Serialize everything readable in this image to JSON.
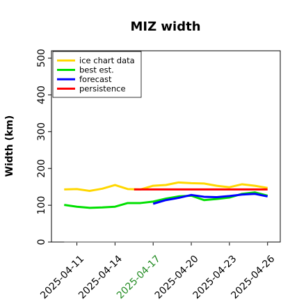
{
  "chart_data": {
    "type": "line",
    "title": "MIZ width",
    "ylabel": "Width (km)",
    "xlabel": "",
    "ylim": [
      0,
      520
    ],
    "yticks": [
      0,
      100,
      200,
      300,
      400,
      500
    ],
    "xlim": [
      "2025-04-09",
      "2025-04-27"
    ],
    "xticks": [
      {
        "label": "2025-04-11",
        "date": "2025-04-11",
        "color": "#000000"
      },
      {
        "label": "2025-04-14",
        "date": "2025-04-14",
        "color": "#000000"
      },
      {
        "label": "2025-04-17",
        "date": "2025-04-17",
        "color": "#228b22"
      },
      {
        "label": "2025-04-20",
        "date": "2025-04-20",
        "color": "#000000"
      },
      {
        "label": "2025-04-23",
        "date": "2025-04-23",
        "color": "#000000"
      },
      {
        "label": "2025-04-26",
        "date": "2025-04-26",
        "color": "#000000"
      }
    ],
    "legend_position": "top-left",
    "grid": false,
    "series": [
      {
        "name": "ice chart data",
        "color": "#ffd700",
        "x": [
          "2025-04-10",
          "2025-04-11",
          "2025-04-12",
          "2025-04-13",
          "2025-04-14",
          "2025-04-15",
          "2025-04-16",
          "2025-04-17",
          "2025-04-18",
          "2025-04-19",
          "2025-04-20",
          "2025-04-21",
          "2025-04-22",
          "2025-04-23",
          "2025-04-24",
          "2025-04-25",
          "2025-04-26"
        ],
        "y": [
          143,
          144,
          139,
          145,
          155,
          144,
          143,
          153,
          155,
          162,
          160,
          159,
          153,
          149,
          157,
          153,
          147
        ]
      },
      {
        "name": "best est.",
        "color": "#00e000",
        "x": [
          "2025-04-10",
          "2025-04-11",
          "2025-04-12",
          "2025-04-13",
          "2025-04-14",
          "2025-04-15",
          "2025-04-16",
          "2025-04-17",
          "2025-04-18",
          "2025-04-19",
          "2025-04-20",
          "2025-04-21",
          "2025-04-22",
          "2025-04-23",
          "2025-04-24",
          "2025-04-25",
          "2025-04-26"
        ],
        "y": [
          101,
          96,
          93,
          94,
          96,
          106,
          106,
          110,
          118,
          124,
          126,
          114,
          117,
          121,
          131,
          135,
          126
        ]
      },
      {
        "name": "forecast",
        "color": "#0000ff",
        "x": [
          "2025-04-17",
          "2025-04-18",
          "2025-04-19",
          "2025-04-20",
          "2025-04-21",
          "2025-04-22",
          "2025-04-23",
          "2025-04-24",
          "2025-04-25",
          "2025-04-26"
        ],
        "y": [
          104,
          114,
          120,
          128,
          123,
          122,
          125,
          129,
          131,
          124
        ]
      },
      {
        "name": "persistence",
        "color": "#ff0000",
        "x": [
          "2025-04-15.5",
          "2025-04-26"
        ],
        "y": [
          143,
          143
        ]
      }
    ],
    "reference_line": {
      "y": 0,
      "x": [
        "2025-04-10",
        "2025-04-26"
      ],
      "color": "#808080"
    }
  }
}
